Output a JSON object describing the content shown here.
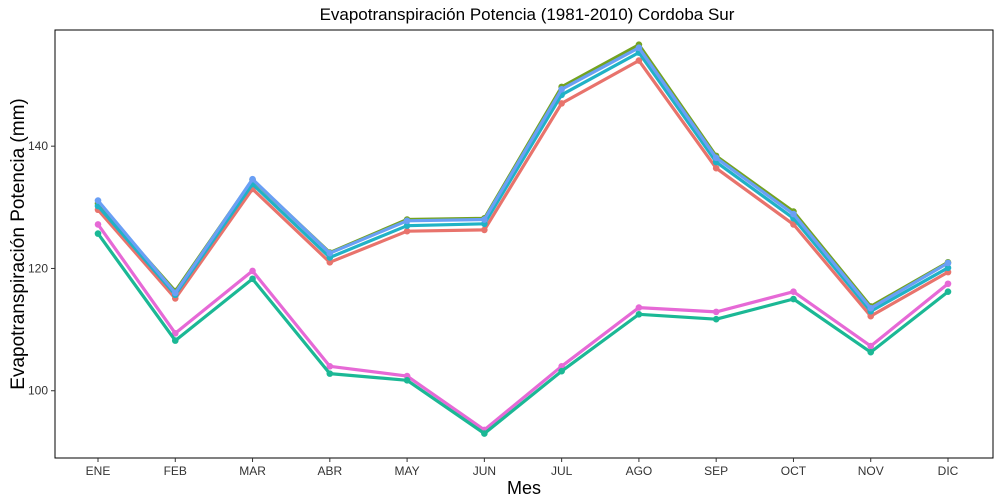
{
  "chart_data": {
    "type": "line",
    "title": "Evapotranspiración Potencia (1981-2010)  Cordoba Sur",
    "xlabel": "Mes",
    "ylabel": "Evapotranspiración Potencia  (mm)",
    "categories": [
      "ENE",
      "FEB",
      "MAR",
      "ABR",
      "MAY",
      "JUN",
      "JUL",
      "AGO",
      "SEP",
      "OCT",
      "NOV",
      "DIC"
    ],
    "ylim": [
      89,
      159
    ],
    "yticks": [
      100,
      120,
      140
    ],
    "grid": false,
    "legend": "none",
    "series": [
      {
        "color": "#e8736c",
        "values": [
          129.6,
          115.1,
          133.0,
          121.0,
          126.1,
          126.3,
          147.0,
          154.0,
          136.4,
          127.2,
          112.2,
          119.4
        ]
      },
      {
        "color": "#73a31f",
        "values": [
          130.6,
          116.3,
          134.5,
          122.6,
          128.0,
          128.2,
          149.7,
          156.6,
          138.4,
          129.3,
          113.8,
          121.0
        ]
      },
      {
        "color": "#20b2c6",
        "values": [
          130.2,
          115.7,
          133.8,
          121.8,
          127.0,
          127.3,
          148.4,
          155.3,
          137.4,
          128.2,
          113.0,
          120.1
        ]
      },
      {
        "color": "#6a9ff5",
        "values": [
          131.1,
          116.0,
          134.6,
          122.5,
          127.8,
          128.0,
          149.3,
          156.1,
          138.1,
          128.9,
          113.5,
          120.9
        ]
      },
      {
        "color": "#e669d6",
        "values": [
          127.2,
          109.4,
          119.6,
          104.0,
          102.4,
          93.6,
          104.0,
          113.6,
          112.9,
          116.2,
          107.3,
          117.5
        ]
      },
      {
        "color": "#1bb895",
        "values": [
          125.7,
          108.2,
          118.3,
          102.8,
          101.7,
          93.0,
          103.2,
          112.5,
          111.7,
          115.0,
          106.3,
          116.2
        ]
      }
    ]
  }
}
